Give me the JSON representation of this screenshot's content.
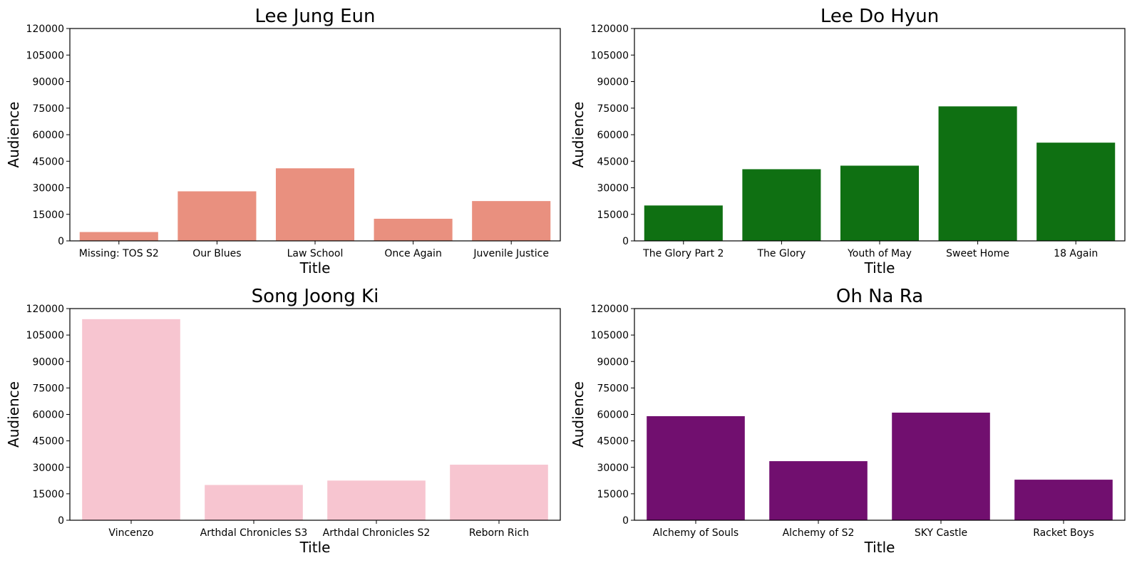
{
  "chart_data": [
    {
      "type": "bar",
      "title": "Lee Jung Eun",
      "xlabel": "Title",
      "ylabel": "Audience",
      "categories": [
        "Missing: TOS S2",
        "Our Blues",
        "Law School",
        "Once Again",
        "Juvenile Justice"
      ],
      "values": [
        5000,
        28000,
        41000,
        12500,
        22500
      ],
      "color": "#E9907F",
      "ylim": [
        0,
        120000
      ],
      "yticks": [
        "0",
        "15000",
        "30000",
        "45000",
        "60000",
        "75000",
        "90000",
        "105000",
        "120000"
      ],
      "grid": false
    },
    {
      "type": "bar",
      "title": "Lee Do Hyun",
      "xlabel": "Title",
      "ylabel": "Audience",
      "categories": [
        "The Glory Part 2",
        "The Glory",
        "Youth of May",
        "Sweet Home",
        "18 Again"
      ],
      "values": [
        20000,
        40500,
        42500,
        76000,
        55500
      ],
      "color": "#0F7012",
      "ylim": [
        0,
        120000
      ],
      "yticks": [
        "0",
        "15000",
        "30000",
        "45000",
        "60000",
        "75000",
        "90000",
        "105000",
        "120000"
      ],
      "grid": false
    },
    {
      "type": "bar",
      "title": "Song Joong Ki",
      "xlabel": "Title",
      "ylabel": "Audience",
      "categories": [
        "Vincenzo",
        "Arthdal Chronicles S3",
        "Arthdal Chronicles S2",
        "Reborn Rich"
      ],
      "values": [
        114000,
        20000,
        22500,
        31500
      ],
      "color": "#F7C5D0",
      "ylim": [
        0,
        120000
      ],
      "yticks": [
        "0",
        "15000",
        "30000",
        "45000",
        "60000",
        "75000",
        "90000",
        "105000",
        "120000"
      ],
      "grid": false
    },
    {
      "type": "bar",
      "title": "Oh Na Ra",
      "xlabel": "Title",
      "ylabel": "Audience",
      "categories": [
        "Alchemy of Souls",
        "Alchemy of S2",
        "SKY Castle",
        "Racket Boys"
      ],
      "values": [
        59000,
        33500,
        61000,
        23000
      ],
      "color": "#710F6F",
      "ylim": [
        0,
        120000
      ],
      "yticks": [
        "0",
        "15000",
        "30000",
        "45000",
        "60000",
        "75000",
        "90000",
        "105000",
        "120000"
      ],
      "grid": false
    }
  ]
}
